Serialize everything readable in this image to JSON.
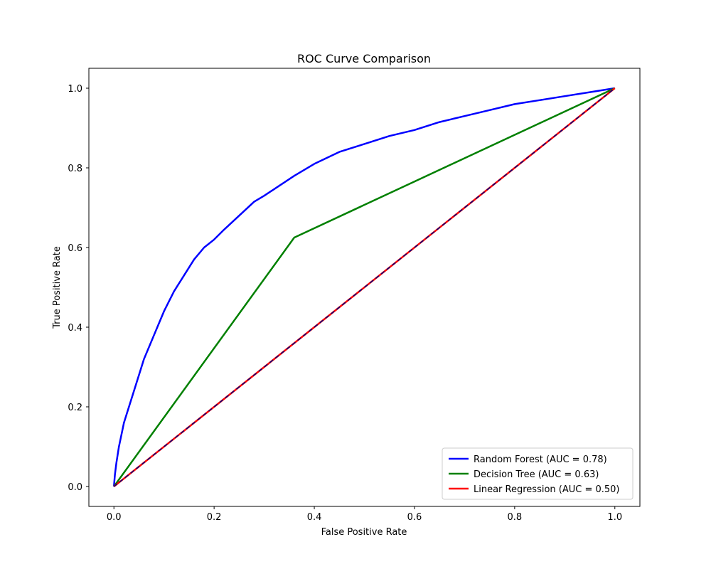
{
  "chart_data": {
    "type": "line",
    "title": "ROC Curve Comparison",
    "xlabel": "False Positive Rate",
    "ylabel": "True Positive Rate",
    "xlim": [
      -0.05,
      1.05
    ],
    "ylim": [
      -0.05,
      1.05
    ],
    "xticks": [
      0.0,
      0.2,
      0.4,
      0.6,
      0.8,
      1.0
    ],
    "yticks": [
      0.0,
      0.2,
      0.4,
      0.6,
      0.8,
      1.0
    ],
    "xtick_labels": [
      "0.0",
      "0.2",
      "0.4",
      "0.6",
      "0.8",
      "1.0"
    ],
    "ytick_labels": [
      "0.0",
      "0.2",
      "0.4",
      "0.6",
      "0.8",
      "1.0"
    ],
    "grid": false,
    "legend_position": "lower-right",
    "series": [
      {
        "name": "Random Forest (AUC = 0.78)",
        "color": "#0000ff",
        "style": "solid",
        "x": [
          0.0,
          0.002,
          0.005,
          0.01,
          0.015,
          0.02,
          0.03,
          0.04,
          0.05,
          0.06,
          0.07,
          0.08,
          0.09,
          0.1,
          0.12,
          0.14,
          0.16,
          0.18,
          0.2,
          0.22,
          0.25,
          0.28,
          0.3,
          0.33,
          0.36,
          0.4,
          0.45,
          0.5,
          0.55,
          0.6,
          0.65,
          0.7,
          0.75,
          0.8,
          0.85,
          0.9,
          0.95,
          1.0
        ],
        "y": [
          0.0,
          0.03,
          0.06,
          0.1,
          0.13,
          0.16,
          0.2,
          0.24,
          0.28,
          0.32,
          0.35,
          0.38,
          0.41,
          0.44,
          0.49,
          0.53,
          0.57,
          0.6,
          0.62,
          0.645,
          0.68,
          0.715,
          0.73,
          0.755,
          0.78,
          0.81,
          0.84,
          0.86,
          0.88,
          0.895,
          0.915,
          0.93,
          0.945,
          0.96,
          0.97,
          0.98,
          0.99,
          1.0
        ]
      },
      {
        "name": "Decision Tree (AUC = 0.63)",
        "color": "#008000",
        "style": "solid",
        "x": [
          0.0,
          0.36,
          1.0
        ],
        "y": [
          0.0,
          0.625,
          1.0
        ]
      },
      {
        "name": "Linear Regression (AUC = 0.50)",
        "color": "#ff0000",
        "style": "solid",
        "x": [
          0.0,
          1.0
        ],
        "y": [
          0.0,
          1.0
        ]
      },
      {
        "name": "",
        "color": "#000080",
        "style": "dashed",
        "x": [
          0.0,
          1.0
        ],
        "y": [
          0.0,
          1.0
        ]
      }
    ]
  }
}
